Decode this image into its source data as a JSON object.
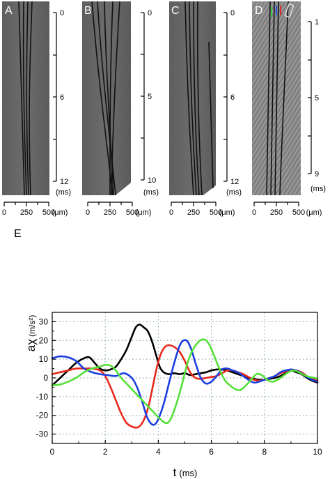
{
  "kymographs": {
    "panels": [
      {
        "label": "A",
        "time_ticks": [
          "0",
          "6",
          "12"
        ],
        "time_unit": "(ms)",
        "pos_ticks": [
          "0",
          "250",
          "500"
        ],
        "pos_unit": "(μm)"
      },
      {
        "label": "B",
        "time_ticks": [
          "0",
          "5",
          "10"
        ],
        "time_unit": "(ms)",
        "pos_ticks": [
          "0",
          "250",
          "500"
        ],
        "pos_unit": "(μm)"
      },
      {
        "label": "C",
        "time_ticks": [
          "0",
          "6",
          "12"
        ],
        "time_unit": "(ms)",
        "pos_ticks": [
          "0",
          "250",
          "500"
        ],
        "pos_unit": "(μm)"
      },
      {
        "label": "D",
        "time_ticks": [
          "1",
          "5",
          "9"
        ],
        "time_unit": "(ms)",
        "pos_ticks": [
          "0",
          "250",
          "500"
        ],
        "pos_unit": "(μm)"
      }
    ]
  },
  "chart_data": {
    "type": "line",
    "panel_label": "E",
    "title": "",
    "xlabel": "t",
    "xlabel_unit": "(ms)",
    "ylabel": "aχ",
    "ylabel_unit": "(m/s²)",
    "xlim": [
      0,
      10
    ],
    "ylim": [
      -35,
      35
    ],
    "xticks": [
      0,
      2,
      4,
      6,
      8,
      10
    ],
    "yticks": [
      -30,
      -20,
      -10,
      0,
      10,
      20,
      30
    ],
    "grid": true,
    "legend": "none",
    "series": [
      {
        "color": "#000000",
        "x": [
          0,
          0.3,
          0.6,
          0.9,
          1.2,
          1.4,
          1.6,
          1.8,
          2.0,
          2.2,
          2.4,
          2.6,
          2.8,
          3.0,
          3.15,
          3.3,
          3.45,
          3.6,
          3.75,
          3.9,
          4.05,
          4.2,
          4.4,
          4.6,
          4.8,
          5.0,
          5.2,
          5.4,
          5.6,
          5.8,
          6.0,
          6.2,
          6.4,
          6.6,
          6.8,
          7.0,
          7.2,
          7.4,
          7.6,
          7.8,
          8.0,
          8.2,
          8.4,
          8.6,
          8.8,
          9.0,
          9.2,
          9.4,
          9.6,
          9.8,
          10.0
        ],
        "y": [
          -4,
          0,
          4,
          8,
          10.5,
          11,
          8,
          5,
          4,
          4.5,
          6,
          10,
          15,
          22,
          27,
          28.5,
          27,
          25,
          20,
          13,
          6,
          3,
          2,
          2.5,
          2,
          2.5,
          1.5,
          2,
          2.5,
          3,
          4,
          4.5,
          4.5,
          4,
          3,
          2,
          1,
          0,
          -0.5,
          -1,
          -1,
          -0.5,
          0,
          1,
          2.5,
          4,
          3,
          2,
          0,
          -1.5,
          -2.5
        ]
      },
      {
        "color": "#e8291c",
        "x": [
          0,
          0.3,
          0.6,
          0.9,
          1.2,
          1.5,
          1.8,
          2.0,
          2.2,
          2.4,
          2.6,
          2.8,
          3.0,
          3.2,
          3.35,
          3.5,
          3.65,
          3.8,
          3.95,
          4.1,
          4.25,
          4.4,
          4.6,
          4.8,
          5.0,
          5.2,
          5.4,
          5.6,
          5.8,
          6.0,
          6.2,
          6.4,
          6.6,
          6.8,
          7.0,
          7.2,
          7.4,
          7.6,
          7.8,
          8.0,
          8.2,
          8.4,
          8.6,
          8.8,
          9.0,
          9.2,
          9.4,
          9.6,
          9.8,
          10.0
        ],
        "y": [
          2,
          3,
          4,
          5,
          5,
          5,
          4,
          1,
          -5,
          -12,
          -19,
          -24,
          -26,
          -26.5,
          -25,
          -21,
          -14,
          -4,
          6,
          13,
          16.5,
          17.5,
          16.5,
          14,
          9,
          3,
          0,
          -0.5,
          0,
          0.5,
          1,
          2.5,
          4,
          4,
          3,
          2,
          0.5,
          -1,
          -1.5,
          -1,
          0,
          1,
          2.5,
          3.5,
          4.5,
          4,
          3,
          1,
          -0.5,
          -1.5
        ]
      },
      {
        "color": "#1c3fe0",
        "x": [
          0,
          0.3,
          0.6,
          0.9,
          1.2,
          1.5,
          1.8,
          2.1,
          2.4,
          2.7,
          3.0,
          3.2,
          3.4,
          3.55,
          3.7,
          3.85,
          4.0,
          4.2,
          4.4,
          4.6,
          4.8,
          4.95,
          5.1,
          5.25,
          5.4,
          5.6,
          5.8,
          6.0,
          6.2,
          6.4,
          6.6,
          6.8,
          7.0,
          7.2,
          7.4,
          7.6,
          7.8,
          8.0,
          8.2,
          8.4,
          8.6,
          8.8,
          9.0,
          9.2,
          9.4,
          9.6,
          9.8,
          10.0
        ],
        "y": [
          10.5,
          11.5,
          11,
          9,
          5,
          3,
          2,
          1.5,
          1,
          2.5,
          0,
          -5,
          -13,
          -20,
          -24,
          -25,
          -22,
          -14,
          -3,
          8,
          17,
          20,
          19.5,
          15,
          8,
          0,
          -3,
          -2,
          1,
          4.5,
          5,
          4,
          3,
          1,
          -1,
          -2.5,
          -2,
          -1,
          0,
          1,
          3,
          4,
          4.5,
          4,
          2.5,
          0.5,
          -1,
          -2
        ]
      },
      {
        "color": "#55e038",
        "x": [
          0,
          0.3,
          0.6,
          0.9,
          1.2,
          1.5,
          1.8,
          2.0,
          2.2,
          2.4,
          2.6,
          2.8,
          3.0,
          3.2,
          3.4,
          3.6,
          3.8,
          4.0,
          4.2,
          4.35,
          4.5,
          4.7,
          4.9,
          5.1,
          5.3,
          5.5,
          5.65,
          5.8,
          5.95,
          6.1,
          6.3,
          6.5,
          6.7,
          6.9,
          7.1,
          7.3,
          7.5,
          7.7,
          7.9,
          8.1,
          8.3,
          8.5,
          8.7,
          8.9,
          9.1,
          9.3,
          9.5,
          9.7,
          9.9,
          10.0
        ],
        "y": [
          -4,
          -3.5,
          -2,
          0,
          3,
          5,
          6,
          7,
          6.5,
          4,
          0,
          -3,
          -6,
          -9,
          -12,
          -15,
          -18,
          -21,
          -23.5,
          -24,
          -21,
          -13,
          -3,
          8,
          15,
          19,
          20.5,
          20,
          17,
          12,
          5,
          -1,
          -4,
          -6,
          -6.5,
          -4,
          -1,
          2,
          1.5,
          -1,
          -2,
          -1,
          1,
          3,
          4,
          3,
          1.5,
          0.5,
          0,
          -0.5
        ]
      }
    ]
  }
}
